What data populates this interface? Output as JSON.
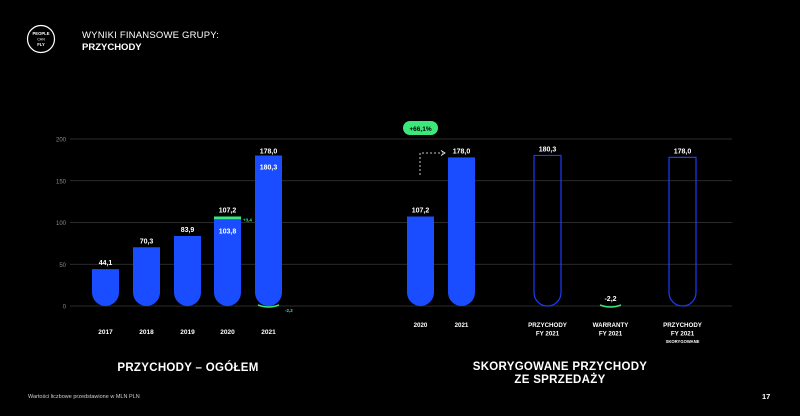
{
  "logo": {
    "line1": "PEOPLE",
    "line2": "CAN",
    "line3": "FLY"
  },
  "header": {
    "title": "WYNIKI FINANSOWE GRUPY:",
    "subtitle": "PRZYCHODY"
  },
  "colors": {
    "bar_blue": "#1a4dff",
    "outline_blue": "#1a3cff",
    "green": "#3ce87a"
  },
  "chart_data": {
    "type": "bar",
    "ylim": [
      0,
      200
    ],
    "yticks": [
      "0",
      "50",
      "100",
      "150",
      "200"
    ],
    "grid": true,
    "left_group": {
      "label": "PRZYCHODY – OGÓŁEM",
      "categories": [
        "2017",
        "2018",
        "2019",
        "2020",
        "2021"
      ],
      "values": [
        44.1,
        70.3,
        83.9,
        103.8,
        180.3
      ],
      "top_labels": [
        "44,1",
        "70,3",
        "83,9",
        "107,2",
        "178,0"
      ],
      "inner_labels": [
        "",
        "",
        "",
        "103,8",
        "180,3"
      ],
      "extras": [
        {
          "category": "2020",
          "value": 3.4,
          "label": "+3,4"
        },
        {
          "category": "2021",
          "value": -2.2,
          "label": "-2,2"
        }
      ]
    },
    "right_group": {
      "label": "SKORYGOWANE PRZYCHODY ZE SPRZEDAŻY",
      "label_line1": "SKORYGOWANE PRZYCHODY",
      "label_line2": "ZE SPRZEDAŻY",
      "growth_badge": "+66,1%",
      "bars": [
        {
          "x_label": [
            "2020"
          ],
          "value": 107.2,
          "label": "107,2",
          "style": "solid"
        },
        {
          "x_label": [
            "2021"
          ],
          "value": 178.0,
          "label": "178,0",
          "style": "solid"
        },
        {
          "x_label": [
            "PRZYCHODY",
            "FY 2021"
          ],
          "value": 180.3,
          "label": "180,3",
          "style": "outline"
        },
        {
          "x_label": [
            "WARRANTY",
            "FY 2021"
          ],
          "value": -2.2,
          "label": "-2,2",
          "style": "green"
        },
        {
          "x_label": [
            "PRZYCHODY",
            "FY 2021",
            "SKORYGOWANE"
          ],
          "value": 178.0,
          "label": "178,0",
          "style": "outline"
        }
      ]
    }
  },
  "footnote": "Wartości liczbowe przedstawione w MLN PLN",
  "page_number": "17"
}
